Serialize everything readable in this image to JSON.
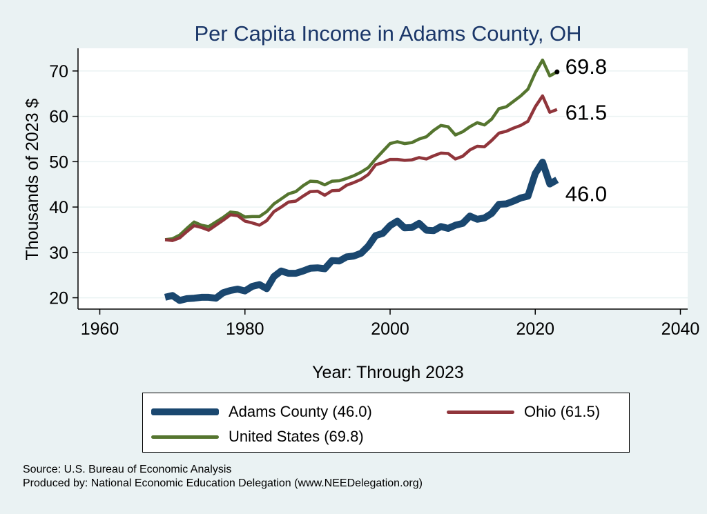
{
  "colors": {
    "background": "#eaf2f3",
    "plot_background": "#ffffff",
    "adams": "#1a476f",
    "ohio": "#90353b",
    "us": "#55752f",
    "title": "#1a3668"
  },
  "legend": {
    "adams": "Adams County (46.0)",
    "ohio": "Ohio (61.5)",
    "us": "United States (69.8)"
  },
  "notes": {
    "source": "Source: U.S. Bureau of Economic Analysis",
    "produced": "Produced by: National Economic Education Delegation (www.NEEDelegation.org)"
  },
  "chart_data": {
    "type": "line",
    "title": "Per Capita Income in Adams County, OH",
    "xlabel": "Year: Through 2023",
    "ylabel": "Thousands of 2023 $",
    "xlim": [
      1957,
      2041
    ],
    "ylim": [
      17.5,
      75
    ],
    "xticks": [
      1960,
      1980,
      2000,
      2020,
      2040
    ],
    "yticks": [
      20,
      30,
      40,
      50,
      60,
      70
    ],
    "grid": "horizontal",
    "x": [
      1969,
      1970,
      1971,
      1972,
      1973,
      1974,
      1975,
      1976,
      1977,
      1978,
      1979,
      1980,
      1981,
      1982,
      1983,
      1984,
      1985,
      1986,
      1987,
      1988,
      1989,
      1990,
      1991,
      1992,
      1993,
      1994,
      1995,
      1996,
      1997,
      1998,
      1999,
      2000,
      2001,
      2002,
      2003,
      2004,
      2005,
      2006,
      2007,
      2008,
      2009,
      2010,
      2011,
      2012,
      2013,
      2014,
      2015,
      2016,
      2017,
      2018,
      2019,
      2020,
      2021,
      2022,
      2023
    ],
    "series": [
      {
        "name": "United States",
        "key": "us",
        "end_label": "69.8",
        "values": [
          32.8,
          33.0,
          33.8,
          35.3,
          36.7,
          36.0,
          35.7,
          36.7,
          37.7,
          38.9,
          38.7,
          37.8,
          37.9,
          37.9,
          39.0,
          40.7,
          41.8,
          42.9,
          43.4,
          44.7,
          45.7,
          45.6,
          44.9,
          45.7,
          45.8,
          46.3,
          46.9,
          47.7,
          48.7,
          50.6,
          52.3,
          54.0,
          54.4,
          54.0,
          54.2,
          55.0,
          55.5,
          56.9,
          58.0,
          57.7,
          55.9,
          56.6,
          57.7,
          58.6,
          58.1,
          59.4,
          61.7,
          62.1,
          63.3,
          64.5,
          66.0,
          69.6,
          72.4,
          68.9,
          69.8
        ]
      },
      {
        "name": "Ohio",
        "key": "ohio",
        "end_label": "61.5",
        "values": [
          32.8,
          32.6,
          33.2,
          34.6,
          35.9,
          35.5,
          34.9,
          36.0,
          37.1,
          38.3,
          38.1,
          36.9,
          36.5,
          36.0,
          37.0,
          39.0,
          40.0,
          41.1,
          41.3,
          42.4,
          43.4,
          43.5,
          42.6,
          43.6,
          43.7,
          44.8,
          45.4,
          46.1,
          47.2,
          49.3,
          49.8,
          50.5,
          50.5,
          50.3,
          50.4,
          50.9,
          50.6,
          51.3,
          51.9,
          51.8,
          50.6,
          51.2,
          52.6,
          53.4,
          53.3,
          54.7,
          56.3,
          56.7,
          57.4,
          58.0,
          58.9,
          62.1,
          64.5,
          60.9,
          61.5
        ]
      },
      {
        "name": "Adams County",
        "key": "adams",
        "end_label": "46.0",
        "values": [
          20.1,
          20.5,
          19.4,
          19.8,
          19.9,
          20.1,
          20.1,
          19.9,
          21.1,
          21.6,
          21.9,
          21.5,
          22.5,
          22.9,
          22.0,
          24.7,
          25.9,
          25.4,
          25.4,
          25.9,
          26.5,
          26.6,
          26.4,
          28.2,
          28.1,
          29.0,
          29.2,
          29.8,
          31.4,
          33.7,
          34.2,
          35.9,
          36.9,
          35.4,
          35.5,
          36.4,
          34.9,
          34.8,
          35.7,
          35.3,
          36.0,
          36.4,
          38.0,
          37.3,
          37.6,
          38.6,
          40.6,
          40.7,
          41.3,
          42.0,
          42.4,
          47.4,
          49.9,
          45.1,
          46.0
        ]
      }
    ]
  }
}
